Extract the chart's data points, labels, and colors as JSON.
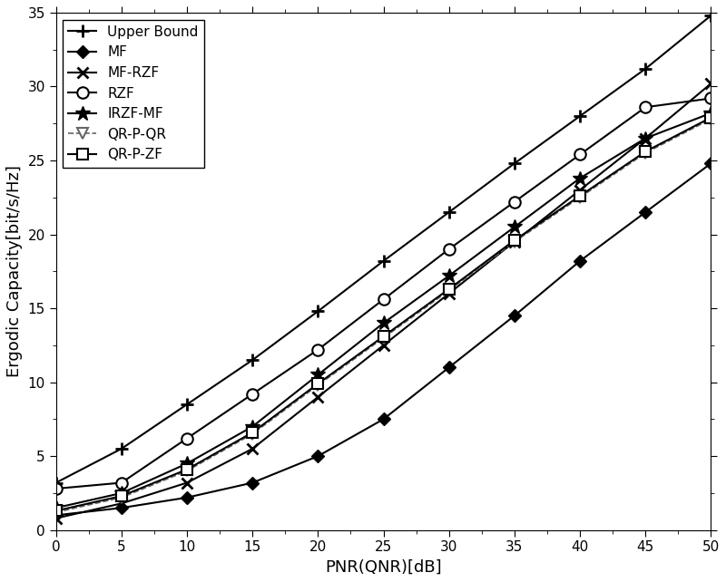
{
  "x": [
    0,
    5,
    10,
    15,
    20,
    25,
    30,
    35,
    40,
    45,
    50
  ],
  "series": {
    "Upper Bound": {
      "y": [
        3.2,
        5.5,
        8.5,
        11.5,
        14.8,
        18.2,
        21.5,
        24.8,
        28.0,
        31.2,
        34.8
      ],
      "marker": "+",
      "linestyle": "-",
      "color": "#000000",
      "markersize": 10,
      "linewidth": 1.5,
      "markerfacecolor": "black",
      "markeredgewidth": 2.0
    },
    "MF": {
      "y": [
        1.0,
        1.5,
        2.2,
        3.2,
        5.0,
        7.5,
        11.0,
        14.5,
        18.2,
        21.5,
        24.8
      ],
      "marker": "D",
      "linestyle": "-",
      "color": "#000000",
      "markersize": 7,
      "linewidth": 1.5,
      "markerfacecolor": "black",
      "markeredgewidth": 1.0
    },
    "MF-RZF": {
      "y": [
        0.8,
        1.8,
        3.2,
        5.5,
        9.0,
        12.5,
        16.0,
        19.5,
        23.0,
        26.5,
        30.2
      ],
      "marker": "x",
      "linestyle": "-",
      "color": "#000000",
      "markersize": 9,
      "linewidth": 1.5,
      "markerfacecolor": "black",
      "markeredgewidth": 2.0
    },
    "RZF": {
      "y": [
        2.8,
        3.2,
        6.2,
        9.2,
        12.2,
        15.6,
        19.0,
        22.2,
        25.4,
        28.6,
        29.2
      ],
      "marker": "o",
      "linestyle": "-",
      "color": "#000000",
      "markersize": 9,
      "linewidth": 1.5,
      "markerfacecolor": "white",
      "markeredgewidth": 1.5
    },
    "IRZF-MF": {
      "y": [
        1.5,
        2.5,
        4.5,
        7.0,
        10.5,
        14.0,
        17.2,
        20.5,
        23.8,
        26.5,
        28.2
      ],
      "marker": "*",
      "linestyle": "-",
      "color": "#000000",
      "markersize": 12,
      "linewidth": 1.5,
      "markerfacecolor": "black",
      "markeredgewidth": 1.0
    },
    "QR-P-QR": {
      "y": [
        1.2,
        2.2,
        4.0,
        6.5,
        9.8,
        13.0,
        16.2,
        19.5,
        22.5,
        25.5,
        27.8
      ],
      "marker": "v",
      "linestyle": "--",
      "color": "#666666",
      "markersize": 9,
      "linewidth": 1.2,
      "markerfacecolor": "white",
      "markeredgewidth": 1.5
    },
    "QR-P-ZF": {
      "y": [
        1.3,
        2.3,
        4.1,
        6.6,
        9.9,
        13.1,
        16.3,
        19.6,
        22.6,
        25.6,
        27.9
      ],
      "marker": "s",
      "linestyle": "-",
      "color": "#000000",
      "markersize": 8,
      "linewidth": 1.5,
      "markerfacecolor": "white",
      "markeredgewidth": 1.5
    }
  },
  "xlabel": "PNR(QNR)[dB]",
  "ylabel": "Ergodic Capacity[bit/s/Hz]",
  "xlim": [
    0,
    50
  ],
  "ylim": [
    0,
    35
  ],
  "xticks": [
    0,
    5,
    10,
    15,
    20,
    25,
    30,
    35,
    40,
    45,
    50
  ],
  "yticks": [
    0,
    5,
    10,
    15,
    20,
    25,
    30,
    35
  ],
  "legend_loc": "upper left",
  "figsize": [
    8.0,
    6.42
  ],
  "dpi": 100
}
